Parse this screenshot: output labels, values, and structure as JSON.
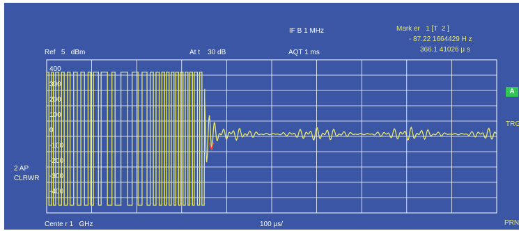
{
  "header": {
    "if_bandwidth": "IF B 1 MHz",
    "ref_level": "Ref   5   dBm",
    "attenuation": "At t    30 dB",
    "acquisition_time": "AQT 1 ms"
  },
  "marker": {
    "title": "Mark er   1 [T  2 ]",
    "frequency": "- 87.22 1664429 H z",
    "time": "366.1 41026 μ s"
  },
  "left_labels": {
    "trace_mode": "2 AP",
    "trace_detector": "CLRWR"
  },
  "right_labels": {
    "badge": "A",
    "trigger": "TRG",
    "print": "PRN"
  },
  "footer": {
    "center": "Cente r 1   GHz",
    "span_per_div": "100 µs/"
  },
  "y_axis": {
    "labels": [
      "400",
      "300",
      "200",
      "100",
      "0",
      "-100",
      "-200",
      "-300",
      "-400"
    ]
  },
  "colors": {
    "background": "#3a56a4",
    "grid": "#ffffff",
    "trace": "#e9e86a",
    "marker": "#ff3a2a",
    "badge": "#33c457"
  },
  "chart_data": {
    "type": "line",
    "x_divisions": 10,
    "x_per_division": "100 µs",
    "ylim": [
      -500,
      500
    ],
    "y_ticks": [
      400,
      300,
      200,
      100,
      0,
      -100,
      -200,
      -300,
      -400
    ],
    "grid": true,
    "marker": {
      "label": "1",
      "x_us": 366.14,
      "y": -87.22
    },
    "series": [
      {
        "square_wave_segments_us": [
          [
            0,
            5
          ],
          [
            11,
            15
          ],
          [
            20,
            27
          ],
          [
            33,
            39
          ],
          [
            46,
            52
          ],
          [
            60,
            68
          ],
          [
            76,
            84
          ],
          [
            92,
            98
          ],
          [
            104,
            115
          ],
          [
            121,
            135
          ],
          [
            145,
            152
          ],
          [
            165,
            180
          ],
          [
            190,
            203
          ],
          [
            212,
            223
          ],
          [
            230,
            237
          ],
          [
            243,
            250
          ],
          [
            256,
            262
          ],
          [
            266,
            272
          ],
          [
            277,
            283
          ],
          [
            287,
            293
          ],
          [
            297,
            303
          ],
          [
            308,
            314
          ],
          [
            318,
            324
          ],
          [
            328,
            335
          ],
          [
            340,
            345
          ]
        ],
        "square_wave_high": 420,
        "square_wave_low": -450,
        "decay_start_us": 350,
        "decay_peak": 310,
        "steady_level": 15,
        "oscillation_amplitude": 45,
        "end_us": 1000
      }
    ]
  }
}
